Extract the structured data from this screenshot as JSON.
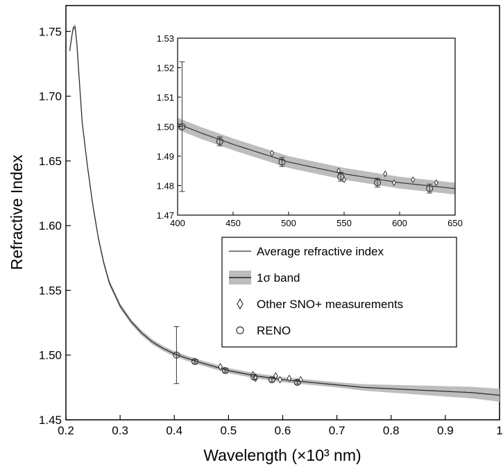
{
  "chart_data": {
    "type": "line",
    "xlabel": "Wavelength (×10³ nm)",
    "ylabel": "Refractive Index",
    "xlim": [
      0.2,
      1.0
    ],
    "ylim": [
      1.45,
      1.77
    ],
    "xticks": [
      "0.2",
      "0.3",
      "0.4",
      "0.5",
      "0.6",
      "0.7",
      "0.8",
      "0.9",
      "1"
    ],
    "yticks": [
      "1.45",
      "1.50",
      "1.55",
      "1.60",
      "1.65",
      "1.70",
      "1.75"
    ],
    "legend_position": "right-middle",
    "legend": [
      "Average refractive index",
      "1σ band",
      "Other SNO+ measurements",
      "RENO"
    ],
    "colors": {
      "line": "#2b2b2b",
      "band": "#bdbdbd",
      "marker": "#333333"
    },
    "series": [
      {
        "name": "Average refractive index",
        "x": [
          0.207,
          0.212,
          0.216,
          0.22,
          0.225,
          0.23,
          0.24,
          0.25,
          0.26,
          0.27,
          0.28,
          0.3,
          0.32,
          0.34,
          0.36,
          0.38,
          0.4,
          0.42,
          0.45,
          0.5,
          0.55,
          0.6,
          0.65,
          0.7,
          0.75,
          0.8,
          0.85,
          0.9,
          0.95,
          1.0
        ],
        "y": [
          1.735,
          1.75,
          1.757,
          1.742,
          1.71,
          1.68,
          1.645,
          1.615,
          1.59,
          1.571,
          1.556,
          1.538,
          1.526,
          1.517,
          1.51,
          1.505,
          1.501,
          1.498,
          1.494,
          1.488,
          1.484,
          1.481,
          1.479,
          1.477,
          1.475,
          1.474,
          1.473,
          1.472,
          1.471,
          1.469
        ],
        "band_halfwidth": [
          0.002,
          0.002,
          0.002,
          0.002,
          0.002,
          0.002,
          0.002,
          0.002,
          0.002,
          0.002,
          0.002,
          0.002,
          0.002,
          0.002,
          0.002,
          0.002,
          0.002,
          0.002,
          0.002,
          0.002,
          0.002,
          0.002,
          0.002,
          0.002,
          0.0025,
          0.003,
          0.0035,
          0.004,
          0.0045,
          0.005
        ]
      },
      {
        "name": "Other SNO+ measurements",
        "x": [
          0.485,
          0.545,
          0.55,
          0.587,
          0.595,
          0.612,
          0.633
        ],
        "y": [
          1.491,
          1.485,
          1.482,
          1.484,
          1.481,
          1.482,
          1.481
        ]
      },
      {
        "name": "RENO",
        "x": [
          0.404,
          0.438,
          0.494,
          0.547,
          0.58,
          0.627
        ],
        "y": [
          1.5,
          1.495,
          1.488,
          1.483,
          1.481,
          1.479
        ],
        "yerr": [
          0.022,
          0.0015,
          0.0015,
          0.0015,
          0.0015,
          0.0015
        ]
      }
    ],
    "inset": {
      "xlim": [
        400,
        650
      ],
      "ylim": [
        1.47,
        1.53
      ],
      "xticks": [
        "400",
        "450",
        "500",
        "550",
        "600",
        "650"
      ],
      "yticks": [
        "1.47",
        "1.48",
        "1.49",
        "1.50",
        "1.51",
        "1.52",
        "1.53"
      ]
    }
  }
}
